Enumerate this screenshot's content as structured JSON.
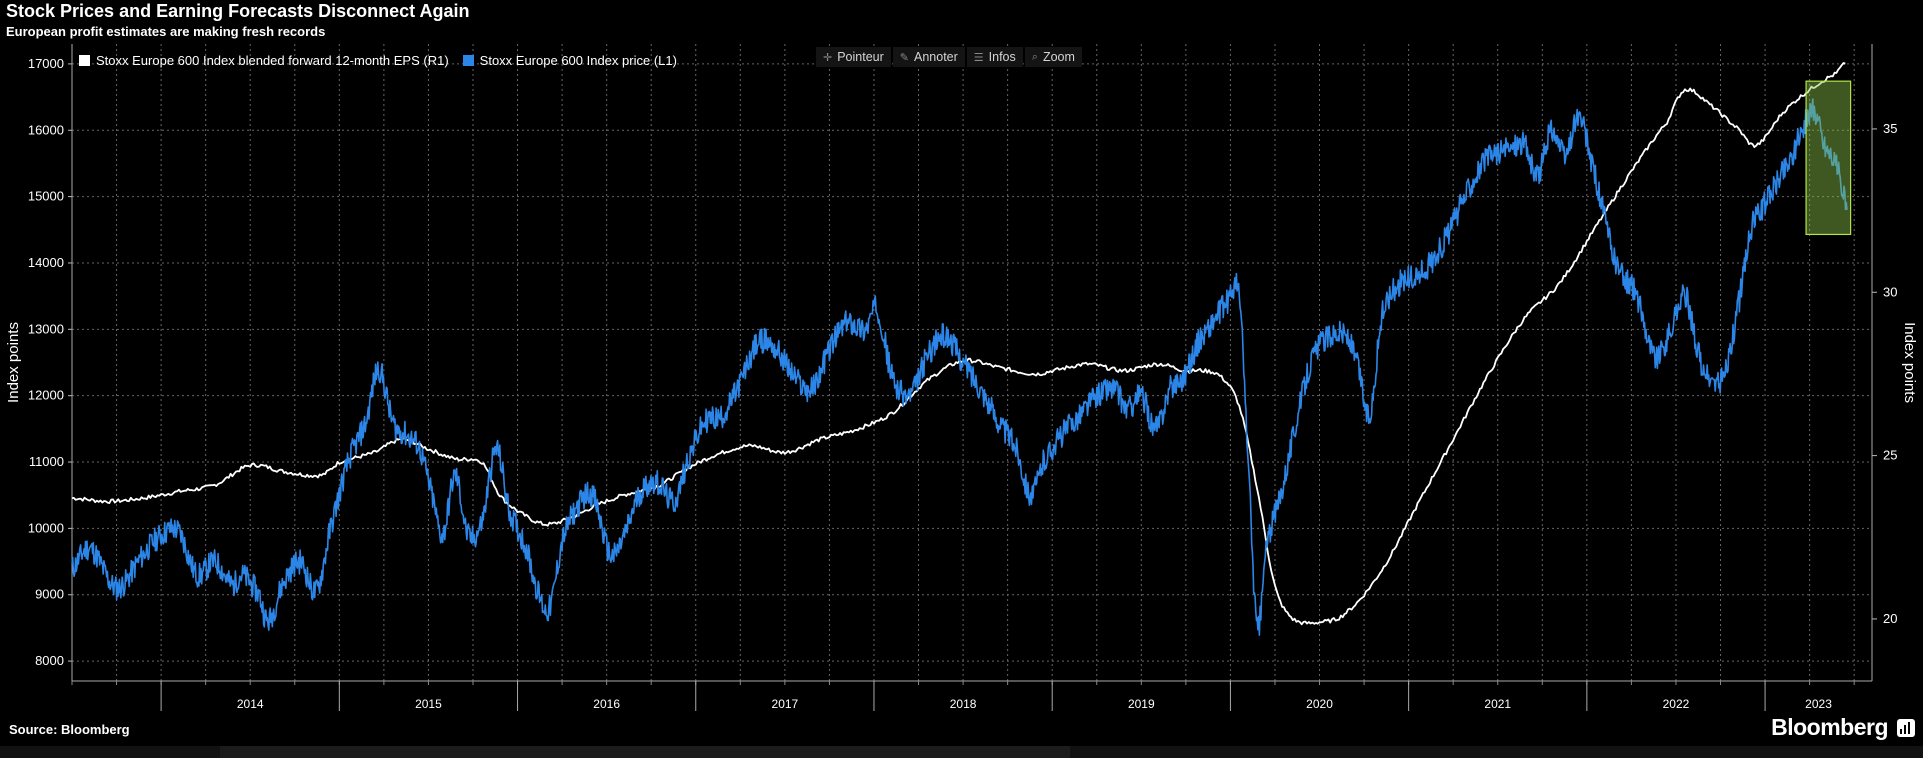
{
  "title": "Stock Prices and Earning Forecasts Disconnect Again",
  "subtitle": "European profit estimates are making fresh records",
  "source": "Source: Bloomberg",
  "brand": "Bloomberg",
  "toolbar": {
    "pointer": "Pointeur",
    "annotate": "Annoter",
    "info": "Infos",
    "zoom": "Zoom"
  },
  "colors": {
    "price": "#2b86e8",
    "eps": "#ffffff",
    "highlight": "#8bc34a",
    "grid": "#666666"
  },
  "chart_data": {
    "type": "line",
    "title": "Stock Prices and Earning Forecasts Disconnect Again",
    "subtitle": "European profit estimates are making fresh records",
    "x_ticks": [
      "2014",
      "2015",
      "2016",
      "2017",
      "2018",
      "2019",
      "2020",
      "2021",
      "2022",
      "2023"
    ],
    "y_left": {
      "label": "Index points",
      "range": [
        7700,
        17300
      ],
      "ticks": [
        8000,
        9000,
        10000,
        11000,
        12000,
        13000,
        14000,
        15000,
        16000,
        17000
      ]
    },
    "y_right": {
      "label": "Index points",
      "range": [
        18.1,
        37.6
      ],
      "ticks": [
        20,
        25,
        30,
        35
      ]
    },
    "legend_position": "top-left",
    "grid": true,
    "series": [
      {
        "name": "Stoxx Europe 600 Index blended forward 12-month EPS (R1)",
        "axis": "right",
        "color": "#ffffff",
        "points": [
          [
            2013.5,
            23.7
          ],
          [
            2013.7,
            23.6
          ],
          [
            2013.9,
            23.7
          ],
          [
            2014.1,
            23.9
          ],
          [
            2014.3,
            24.1
          ],
          [
            2014.5,
            24.7
          ],
          [
            2014.7,
            24.5
          ],
          [
            2014.9,
            24.4
          ],
          [
            2015.0,
            24.8
          ],
          [
            2015.2,
            25.1
          ],
          [
            2015.35,
            25.5
          ],
          [
            2015.5,
            25.2
          ],
          [
            2015.65,
            24.9
          ],
          [
            2015.8,
            24.8
          ],
          [
            2015.9,
            23.8
          ],
          [
            2016.0,
            23.3
          ],
          [
            2016.15,
            22.9
          ],
          [
            2016.3,
            23.1
          ],
          [
            2016.45,
            23.5
          ],
          [
            2016.6,
            23.8
          ],
          [
            2016.8,
            24.1
          ],
          [
            2016.95,
            24.6
          ],
          [
            2017.1,
            25.0
          ],
          [
            2017.3,
            25.3
          ],
          [
            2017.5,
            25.1
          ],
          [
            2017.7,
            25.5
          ],
          [
            2017.9,
            25.8
          ],
          [
            2018.1,
            26.3
          ],
          [
            2018.3,
            27.3
          ],
          [
            2018.5,
            27.9
          ],
          [
            2018.7,
            27.7
          ],
          [
            2018.9,
            27.5
          ],
          [
            2019.0,
            27.6
          ],
          [
            2019.2,
            27.8
          ],
          [
            2019.4,
            27.6
          ],
          [
            2019.6,
            27.8
          ],
          [
            2019.75,
            27.6
          ],
          [
            2019.85,
            27.6
          ],
          [
            2019.95,
            27.4
          ],
          [
            2020.05,
            26.5
          ],
          [
            2020.15,
            24.0
          ],
          [
            2020.25,
            21.0
          ],
          [
            2020.35,
            20.0
          ],
          [
            2020.5,
            19.9
          ],
          [
            2020.65,
            20.2
          ],
          [
            2020.85,
            21.5
          ],
          [
            2021.05,
            23.5
          ],
          [
            2021.25,
            25.5
          ],
          [
            2021.45,
            27.5
          ],
          [
            2021.65,
            29.2
          ],
          [
            2021.85,
            30.3
          ],
          [
            2022.05,
            32.0
          ],
          [
            2022.25,
            33.7
          ],
          [
            2022.45,
            35.2
          ],
          [
            2022.55,
            36.2
          ],
          [
            2022.7,
            35.7
          ],
          [
            2022.85,
            35.0
          ],
          [
            2022.95,
            34.5
          ],
          [
            2023.1,
            35.5
          ],
          [
            2023.25,
            36.2
          ],
          [
            2023.4,
            36.7
          ],
          [
            2023.45,
            37.0
          ]
        ]
      },
      {
        "name": "Stoxx Europe 600 Index price (L1)",
        "axis": "left",
        "color": "#2b86e8",
        "points": [
          [
            2013.5,
            9400
          ],
          [
            2013.6,
            9700
          ],
          [
            2013.75,
            9100
          ],
          [
            2013.9,
            9600
          ],
          [
            2014.0,
            9900
          ],
          [
            2014.1,
            9950
          ],
          [
            2014.2,
            9300
          ],
          [
            2014.3,
            9500
          ],
          [
            2014.4,
            9150
          ],
          [
            2014.45,
            9300
          ],
          [
            2014.55,
            9000
          ],
          [
            2014.6,
            8600
          ],
          [
            2014.68,
            9150
          ],
          [
            2014.78,
            9500
          ],
          [
            2014.87,
            9050
          ],
          [
            2014.95,
            10000
          ],
          [
            2015.05,
            11000
          ],
          [
            2015.15,
            11600
          ],
          [
            2015.22,
            12400
          ],
          [
            2015.3,
            11600
          ],
          [
            2015.38,
            11400
          ],
          [
            2015.45,
            11200
          ],
          [
            2015.52,
            10500
          ],
          [
            2015.58,
            9900
          ],
          [
            2015.65,
            10800
          ],
          [
            2015.72,
            9900
          ],
          [
            2015.8,
            10100
          ],
          [
            2015.88,
            11200
          ],
          [
            2015.95,
            10300
          ],
          [
            2016.05,
            9700
          ],
          [
            2016.12,
            9000
          ],
          [
            2016.18,
            8800
          ],
          [
            2016.25,
            9800
          ],
          [
            2016.33,
            10300
          ],
          [
            2016.42,
            10500
          ],
          [
            2016.52,
            9600
          ],
          [
            2016.6,
            9900
          ],
          [
            2016.68,
            10500
          ],
          [
            2016.78,
            10700
          ],
          [
            2016.88,
            10400
          ],
          [
            2016.95,
            11000
          ],
          [
            2017.05,
            11600
          ],
          [
            2017.15,
            11700
          ],
          [
            2017.25,
            12200
          ],
          [
            2017.35,
            12800
          ],
          [
            2017.45,
            12700
          ],
          [
            2017.55,
            12300
          ],
          [
            2017.65,
            12100
          ],
          [
            2017.75,
            12700
          ],
          [
            2017.85,
            13100
          ],
          [
            2017.95,
            13000
          ],
          [
            2018.02,
            13300
          ],
          [
            2018.1,
            12300
          ],
          [
            2018.2,
            12000
          ],
          [
            2018.3,
            12600
          ],
          [
            2018.4,
            12900
          ],
          [
            2018.5,
            12500
          ],
          [
            2018.6,
            12100
          ],
          [
            2018.7,
            11600
          ],
          [
            2018.8,
            11200
          ],
          [
            2018.88,
            10500
          ],
          [
            2018.95,
            11000
          ],
          [
            2019.05,
            11400
          ],
          [
            2019.15,
            11700
          ],
          [
            2019.25,
            12000
          ],
          [
            2019.35,
            12100
          ],
          [
            2019.42,
            11800
          ],
          [
            2019.5,
            12000
          ],
          [
            2019.58,
            11500
          ],
          [
            2019.66,
            12100
          ],
          [
            2019.74,
            12300
          ],
          [
            2019.82,
            12800
          ],
          [
            2019.9,
            13100
          ],
          [
            2019.98,
            13400
          ],
          [
            2020.05,
            13500
          ],
          [
            2020.1,
            11000
          ],
          [
            2020.15,
            8500
          ],
          [
            2020.2,
            9700
          ],
          [
            2020.28,
            10500
          ],
          [
            2020.36,
            11500
          ],
          [
            2020.45,
            12500
          ],
          [
            2020.55,
            12900
          ],
          [
            2020.65,
            12900
          ],
          [
            2020.72,
            12400
          ],
          [
            2020.78,
            11700
          ],
          [
            2020.85,
            13200
          ],
          [
            2020.95,
            13700
          ],
          [
            2021.05,
            13800
          ],
          [
            2021.15,
            14100
          ],
          [
            2021.25,
            14600
          ],
          [
            2021.35,
            15200
          ],
          [
            2021.45,
            15600
          ],
          [
            2021.55,
            15700
          ],
          [
            2021.65,
            15800
          ],
          [
            2021.72,
            15300
          ],
          [
            2021.8,
            16000
          ],
          [
            2021.88,
            15600
          ],
          [
            2021.95,
            16200
          ],
          [
            2022.02,
            15600
          ],
          [
            2022.1,
            14700
          ],
          [
            2022.15,
            14100
          ],
          [
            2022.2,
            13800
          ],
          [
            2022.28,
            13500
          ],
          [
            2022.38,
            12600
          ],
          [
            2022.46,
            12900
          ],
          [
            2022.55,
            13500
          ],
          [
            2022.63,
            12600
          ],
          [
            2022.7,
            12200
          ],
          [
            2022.78,
            12400
          ],
          [
            2022.86,
            13500
          ],
          [
            2022.92,
            14500
          ],
          [
            2023.0,
            14900
          ],
          [
            2023.08,
            15300
          ],
          [
            2023.15,
            15600
          ],
          [
            2023.22,
            16100
          ],
          [
            2023.28,
            16300
          ],
          [
            2023.33,
            15800
          ],
          [
            2023.38,
            15600
          ],
          [
            2023.43,
            15200
          ],
          [
            2023.46,
            14800
          ]
        ]
      }
    ],
    "annotations": [
      {
        "type": "highlight-box",
        "x_range": [
          2023.23,
          2023.48
        ],
        "y_left_range": [
          14430,
          16740
        ],
        "color": "#8bc34a"
      }
    ]
  }
}
